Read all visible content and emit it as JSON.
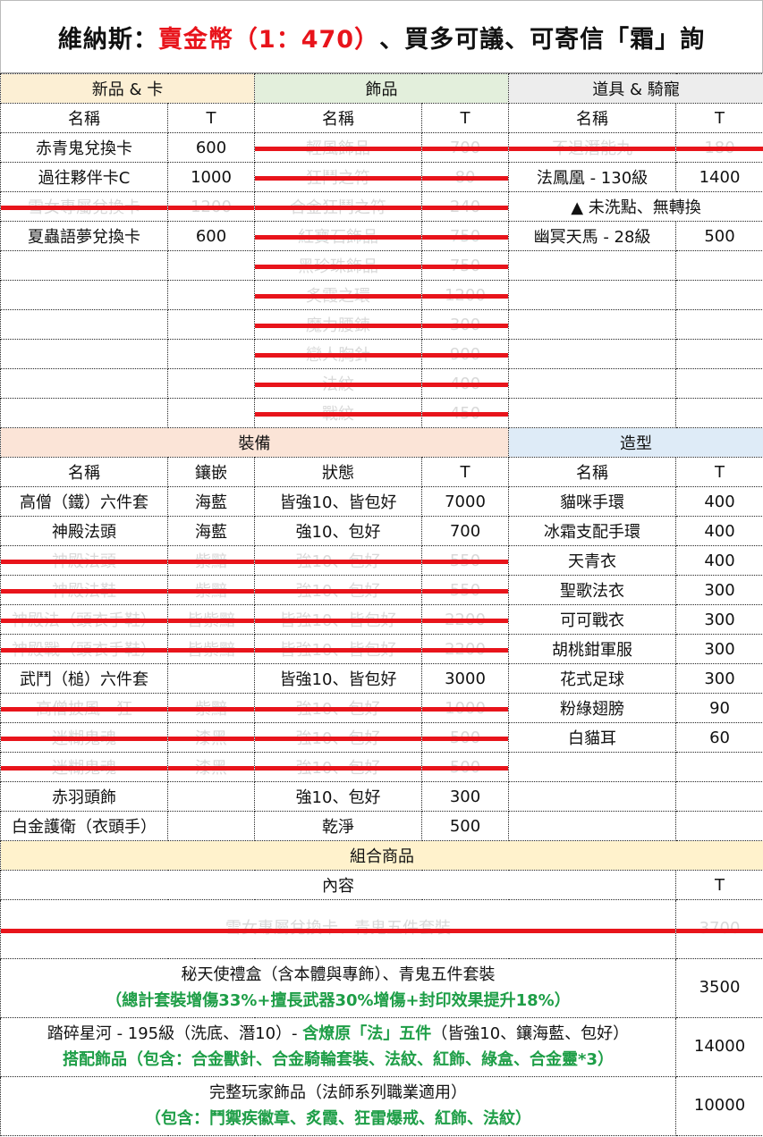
{
  "title": {
    "part1": "維納斯：",
    "part2": "賣金幣（1：470）",
    "part3": "、買多可議、可寄信「霜」詢"
  },
  "top": {
    "sections": [
      {
        "title": "新品 & 卡",
        "color": "#fcefd4",
        "col_name": "名稱",
        "col_t": "T",
        "items": [
          {
            "name": "赤青鬼兌換卡",
            "t": "600",
            "struck": false
          },
          {
            "name": "過往夥伴卡C",
            "t": "1000",
            "struck": false
          },
          {
            "name": "雪女專屬兌換卡",
            "t": "1200",
            "struck": true
          },
          {
            "name": "夏蟲語夢兌換卡",
            "t": "600",
            "struck": false
          }
        ]
      },
      {
        "title": "飾品",
        "color": "#e3efdc",
        "col_name": "名稱",
        "col_t": "T",
        "items": [
          {
            "name": "輕風飾品",
            "t": "700",
            "struck": true
          },
          {
            "name": "狂鬥之符",
            "t": "80",
            "struck": true
          },
          {
            "name": "合金狂鬥之符",
            "t": "240",
            "struck": true
          },
          {
            "name": "紅寶石飾品",
            "t": "750",
            "struck": true
          },
          {
            "name": "黑珍珠飾品",
            "t": "750",
            "struck": true
          },
          {
            "name": "炙霞之環",
            "t": "1200",
            "struck": true
          },
          {
            "name": "魔力腰鍊",
            "t": "300",
            "struck": true
          },
          {
            "name": "戀人胸針",
            "t": "900",
            "struck": true
          },
          {
            "name": "法紋",
            "t": "400",
            "struck": true
          },
          {
            "name": "戰紋",
            "t": "450",
            "struck": true
          }
        ]
      },
      {
        "title": "道具 & 騎寵",
        "color": "#ededed",
        "col_name": "名稱",
        "col_t": "T",
        "items": [
          {
            "name": "不退潛能丸",
            "t": "180",
            "struck": true
          },
          {
            "name": "法鳳凰 - 130級",
            "t": "1400",
            "struck": false
          },
          {
            "note": "▲ 未洗點、無轉換"
          },
          {
            "name": "幽冥天馬 - 28級",
            "t": "500",
            "struck": false
          }
        ]
      }
    ]
  },
  "equipment": {
    "title": "裝備",
    "color": "#fbe4d7",
    "headers": [
      "名稱",
      "鑲嵌",
      "狀態",
      "T"
    ],
    "items": [
      {
        "name": "高僧（鐵）六件套",
        "inlay": "海藍",
        "status": "皆強10、皆包好",
        "t": "7000",
        "struck": false
      },
      {
        "name": "神殿法頭",
        "inlay": "海藍",
        "status": "強10、包好",
        "t": "700",
        "struck": false
      },
      {
        "name": "神殿法頭",
        "inlay": "紫黯",
        "status": "強10、包好",
        "t": "550",
        "struck": true
      },
      {
        "name": "神殿法鞋",
        "inlay": "紫黯",
        "status": "強10、包好",
        "t": "550",
        "struck": true
      },
      {
        "name": "神殿法（頭衣手鞋）",
        "inlay": "皆紫黯",
        "status": "皆強10、皆包好",
        "t": "2200",
        "struck": true
      },
      {
        "name": "神殿戰（頭衣手鞋）",
        "inlay": "皆紫黯",
        "status": "皆強10、皆包好",
        "t": "2200",
        "struck": true
      },
      {
        "name": "武鬥（槌）六件套",
        "inlay": "",
        "status": "皆強10、皆包好",
        "t": "3000",
        "struck": false
      },
      {
        "name": "高僧披風－狂",
        "inlay": "紫黯",
        "status": "強10、包好",
        "t": "1000",
        "struck": true
      },
      {
        "name": "迷糊鬼魂",
        "inlay": "漆黑",
        "status": "強10、包好",
        "t": "500",
        "struck": true
      },
      {
        "name": "迷糊鬼魂",
        "inlay": "漆黑",
        "status": "強10、包好",
        "t": "500",
        "struck": true
      },
      {
        "name": "赤羽頭飾",
        "inlay": "",
        "status": "強10、包好",
        "t": "300",
        "struck": false
      },
      {
        "name": "白金護衛（衣頭手）",
        "inlay": "",
        "status": "乾淨",
        "t": "500",
        "struck": false
      }
    ]
  },
  "style": {
    "title": "造型",
    "color": "#deebf7",
    "headers": [
      "名稱",
      "T"
    ],
    "items": [
      {
        "name": "貓咪手環",
        "t": "400"
      },
      {
        "name": "冰霜支配手環",
        "t": "400"
      },
      {
        "name": "天青衣",
        "t": "400"
      },
      {
        "name": "聖歌法衣",
        "t": "300"
      },
      {
        "name": "可可戰衣",
        "t": "300"
      },
      {
        "name": "胡桃鉗軍服",
        "t": "300"
      },
      {
        "name": "花式足球",
        "t": "300"
      },
      {
        "name": "粉綠翅膀",
        "t": "90"
      },
      {
        "name": "白貓耳",
        "t": "60"
      }
    ]
  },
  "combo": {
    "title": "組合商品",
    "color": "#fff2cc",
    "headers": [
      "內容",
      "T"
    ],
    "items": [
      {
        "struck": true,
        "t": "3700",
        "lines": [
          [
            {
              "text": "雪女專屬兌換卡、青鬼五件套裝",
              "green": false
            }
          ]
        ]
      },
      {
        "struck": false,
        "t": "3500",
        "lines": [
          [
            {
              "text": "秘天使禮盒（含本體與專飾）、青鬼五件套裝",
              "green": false
            }
          ],
          [
            {
              "text": "（總計套裝增傷33%+擅長武器30%增傷+封印效果提升18%）",
              "green": true
            }
          ]
        ]
      },
      {
        "struck": false,
        "t": "14000",
        "lines": [
          [
            {
              "text": "踏碎星河 - 195級（洗底、潛10）- ",
              "green": false
            },
            {
              "text": "含燎原「法」五件",
              "green": true
            },
            {
              "text": "（皆強10、鑲海藍、包好）",
              "green": false
            }
          ],
          [
            {
              "text": "搭配飾品（包含：合金獸針、合金騎輪套裝、法紋、紅飾、綠盒、合金靈*3）",
              "green": true
            }
          ]
        ]
      },
      {
        "struck": false,
        "t": "10000",
        "lines": [
          [
            {
              "text": "完整玩家飾品（法師系列職業適用）",
              "green": false
            }
          ],
          [
            {
              "text": "（包含：鬥禦疾徽章、炙霞、狂雷爆戒、紅飾、法紋）",
              "green": true
            }
          ]
        ]
      }
    ]
  }
}
